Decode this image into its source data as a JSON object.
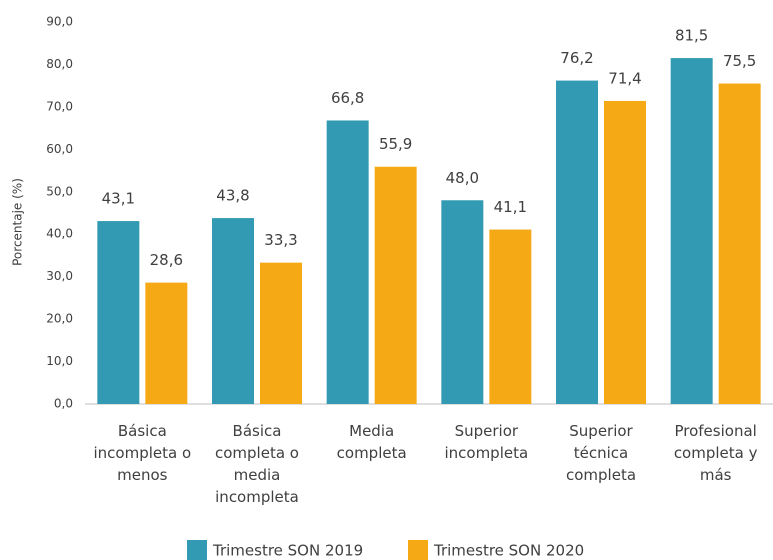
{
  "chart_data": {
    "type": "bar",
    "y_label": "Porcentaje (%)",
    "categories": [
      "Básica\nincompleta o\nmenos",
      "Básica\ncompleta o\nmedia\nincompleta",
      "Media\ncompleta",
      "Superior\nincompleta",
      "Superior\ntécnica\ncompleta",
      "Profesional\ncompleta y\nmás"
    ],
    "series": [
      {
        "name": "Trimestre SON 2019",
        "color": "#329ab2",
        "values": [
          43.1,
          43.8,
          66.8,
          48.0,
          76.2,
          81.5
        ],
        "value_labels": [
          "43,1",
          "43,8",
          "66,8",
          "48,0",
          "76,2",
          "81,5"
        ]
      },
      {
        "name": "Trimestre SON 2020",
        "color": "#f5a914",
        "values": [
          28.6,
          33.3,
          55.9,
          41.1,
          71.4,
          75.5
        ],
        "value_labels": [
          "28,6",
          "33,3",
          "55,9",
          "41,1",
          "71,4",
          "75,5"
        ]
      }
    ],
    "ylim": [
      0,
      90
    ],
    "yticks": [
      {
        "value": 0,
        "label": "0,0"
      },
      {
        "value": 10,
        "label": "10,0"
      },
      {
        "value": 20,
        "label": "20,0"
      },
      {
        "value": 30,
        "label": "30,0"
      },
      {
        "value": 40,
        "label": "40,0"
      },
      {
        "value": 50,
        "label": "50,0"
      },
      {
        "value": 60,
        "label": "60,0"
      },
      {
        "value": 70,
        "label": "70,0"
      },
      {
        "value": 80,
        "label": "80,0"
      },
      {
        "value": 90,
        "label": "90,0"
      }
    ],
    "legend": "bottom"
  }
}
